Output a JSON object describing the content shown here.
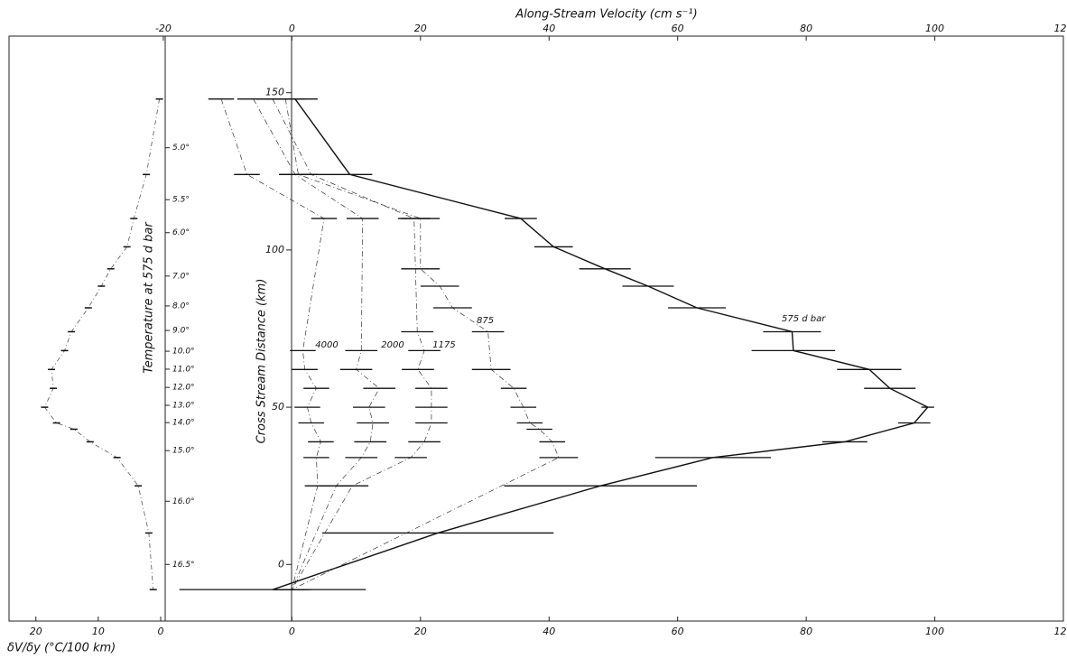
{
  "chart_data": {
    "type": "profile",
    "title": "Along-Stream Velocity (cm s⁻¹)",
    "y_label": "Cross Stream Distance (km)",
    "temperature_label": "Temperature at 575 d bar",
    "gradient_label": "δV/δy (°C/100 km)",
    "xlim": [
      -44,
      120
    ],
    "xticks": [
      -20,
      0,
      20,
      40,
      60,
      80,
      100,
      120
    ],
    "xticks_bottom": [
      0,
      20,
      40,
      60,
      80,
      100,
      120
    ],
    "ylim": [
      -18,
      168
    ],
    "yticks": [
      0,
      50,
      100,
      150
    ],
    "gradient_xlim": [
      24.3,
      0
    ],
    "gradient_ticks": [
      20,
      10,
      0
    ],
    "temperature_ticks": [
      {
        "value": 132.5,
        "label": "5.0°"
      },
      {
        "value": 116,
        "label": "5.5°"
      },
      {
        "value": 105.5,
        "label": "6.0°"
      },
      {
        "value": 91.7,
        "label": "7.0°"
      },
      {
        "value": 82.2,
        "label": "8.0°"
      },
      {
        "value": 74.4,
        "label": "9.0°"
      },
      {
        "value": 67.8,
        "label": "10.0°"
      },
      {
        "value": 62.1,
        "label": "11.0°"
      },
      {
        "value": 56.3,
        "label": "12.0°"
      },
      {
        "value": 50.6,
        "label": "13.0°"
      },
      {
        "value": 45.1,
        "label": "14.0°"
      },
      {
        "value": 36.2,
        "label": "15.0°"
      },
      {
        "value": 20.1,
        "label": "16.0°"
      },
      {
        "value": 0,
        "label": "16.5°"
      }
    ],
    "series": [
      {
        "name": "575 d bar",
        "color": "#111111",
        "distance": [
          148,
          124,
          110,
          101,
          94,
          88.5,
          81.6,
          74,
          68,
          62,
          56,
          50,
          45,
          39,
          34,
          25,
          10,
          -8
        ],
        "values": [
          0.5,
          9,
          35.6,
          40.7,
          48.7,
          55.4,
          63,
          77.8,
          78,
          89.8,
          93,
          98.9,
          96.8,
          86,
          65.5,
          48,
          22.7,
          -3
        ],
        "errors": [
          3.5,
          3.5,
          2.5,
          3,
          4,
          4,
          4.5,
          4.5,
          6.5,
          5,
          4,
          1,
          2.5,
          3.5,
          9,
          15,
          18,
          14.5
        ]
      },
      {
        "name": "875",
        "color": "#333333",
        "distance": [
          148,
          124,
          110,
          94,
          88.5,
          81.6,
          74,
          62,
          56,
          50,
          45,
          43,
          39,
          34,
          -8
        ],
        "values": [
          -1,
          1,
          20,
          20,
          23,
          25,
          30.5,
          31,
          34.5,
          36,
          37,
          38.5,
          40.5,
          41.5,
          0
        ],
        "errors": [
          3,
          3,
          3,
          3,
          3,
          3,
          2.5,
          3,
          2,
          2,
          2,
          2,
          2,
          3,
          3
        ]
      },
      {
        "name": "1175",
        "color": "#333333",
        "distance": [
          148,
          124,
          110,
          74,
          68,
          62,
          56,
          50,
          45,
          39,
          34,
          25,
          -8
        ],
        "values": [
          -3,
          3,
          19,
          19.5,
          20.6,
          19.6,
          21.7,
          21.7,
          21.7,
          20.6,
          18.5,
          9.4,
          0
        ],
        "errors": [
          2.5,
          2.5,
          2.5,
          2.5,
          2.5,
          2.5,
          2.5,
          2.5,
          2.5,
          2.5,
          2.5,
          2.5,
          2.5
        ]
      },
      {
        "name": "2000",
        "color": "#333333",
        "distance": [
          148,
          124,
          110,
          68,
          62,
          56,
          50,
          45,
          39,
          34,
          25,
          -8
        ],
        "values": [
          -6,
          0.5,
          11,
          10.8,
          10,
          13.6,
          12,
          12.6,
          12.2,
          10.8,
          6.9,
          0
        ],
        "errors": [
          2.5,
          2.5,
          2.5,
          2.5,
          2.5,
          2.5,
          2.5,
          2.5,
          2.5,
          2.5,
          2.5,
          2.5
        ]
      },
      {
        "name": "4000",
        "color": "#333333",
        "distance": [
          148,
          124,
          110,
          68,
          62,
          56,
          50,
          45,
          39,
          34,
          25,
          -8
        ],
        "values": [
          -11,
          -7,
          5,
          1.7,
          2,
          3.8,
          2.4,
          3,
          4.5,
          3.8,
          4,
          0
        ],
        "errors": [
          2,
          2,
          2,
          2,
          2,
          2,
          2,
          2,
          2,
          2,
          2,
          2
        ]
      }
    ],
    "gradient": {
      "distance": [
        148,
        124,
        110,
        101,
        94,
        88.5,
        81.6,
        74,
        68,
        62,
        56,
        50,
        45,
        43,
        39,
        34,
        25,
        10,
        -8
      ],
      "values": [
        0.2,
        2.3,
        4.3,
        5.4,
        8,
        9.5,
        11.6,
        14.3,
        15.4,
        17.5,
        17.2,
        18.6,
        16.7,
        13.9,
        11.3,
        7,
        3.6,
        1.9,
        1.2
      ]
    }
  }
}
